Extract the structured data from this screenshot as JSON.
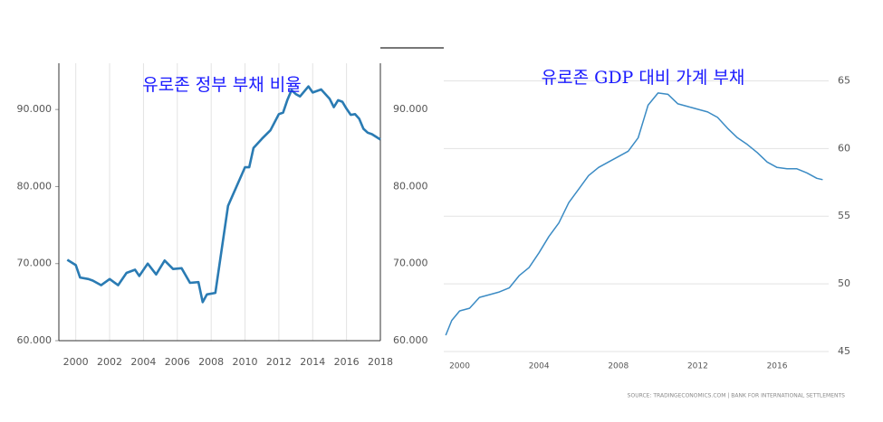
{
  "chart_data": [
    {
      "type": "line",
      "title": "유로존 정부 부채 비율",
      "x": [
        1999.5,
        2000,
        2000.25,
        2000.75,
        2001,
        2001.5,
        2002,
        2002.5,
        2003,
        2003.5,
        2003.75,
        2004.25,
        2004.75,
        2005.25,
        2005.75,
        2006.25,
        2006.75,
        2007.25,
        2007.5,
        2007.75,
        2008.25,
        2008.5,
        2009,
        2009.5,
        2010,
        2010.25,
        2010.5,
        2011,
        2011.5,
        2012,
        2012.25,
        2012.5,
        2012.75,
        2013,
        2013.25,
        2013.75,
        2014,
        2014.5,
        2015,
        2015.25,
        2015.5,
        2015.75,
        2016,
        2016.25,
        2016.5,
        2016.75,
        2017,
        2017.25,
        2017.5,
        2018
      ],
      "values": [
        70.5,
        69.8,
        68.2,
        68.0,
        67.8,
        67.2,
        68.0,
        67.2,
        68.8,
        69.2,
        68.4,
        70.0,
        68.6,
        70.4,
        69.3,
        69.4,
        67.5,
        67.6,
        65.0,
        66.0,
        66.2,
        70.0,
        77.5,
        80.0,
        82.5,
        82.5,
        85.0,
        86.2,
        87.3,
        89.4,
        89.6,
        91.2,
        92.5,
        92.0,
        91.7,
        93.0,
        92.2,
        92.6,
        91.4,
        90.3,
        91.2,
        91.0,
        90.1,
        89.3,
        89.4,
        88.8,
        87.5,
        87.0,
        86.8,
        86.1
      ],
      "color": "#2a7bb3",
      "xlim": [
        1999,
        2018
      ],
      "xticks": [
        2000,
        2002,
        2004,
        2006,
        2008,
        2010,
        2012,
        2014,
        2016,
        2018
      ],
      "ylim": [
        60,
        96
      ],
      "yticks": [
        {
          "value": 60,
          "label": "60.000"
        },
        {
          "value": 70,
          "label": "70.000"
        },
        {
          "value": 80,
          "label": "80.000"
        },
        {
          "value": 90,
          "label": "90.000"
        }
      ],
      "grid": "x"
    },
    {
      "type": "line",
      "title": "유로존 GDP 대비 가계 부채",
      "x": [
        1999.3,
        1999.6,
        2000,
        2000.5,
        2001,
        2001.5,
        2002,
        2002.5,
        2003,
        2003.5,
        2004,
        2004.5,
        2005,
        2005.5,
        2006,
        2006.5,
        2007,
        2007.5,
        2008,
        2008.5,
        2009,
        2009.5,
        2010,
        2010.5,
        2011,
        2011.5,
        2012,
        2012.5,
        2013,
        2013.5,
        2014,
        2014.5,
        2015,
        2015.5,
        2016,
        2016.5,
        2017,
        2017.5,
        2018,
        2018.3
      ],
      "values": [
        46.2,
        47.3,
        48.0,
        48.2,
        49.0,
        49.2,
        49.4,
        49.7,
        50.6,
        51.2,
        52.3,
        53.5,
        54.5,
        56.0,
        57.0,
        58.0,
        58.6,
        59.0,
        59.4,
        59.8,
        60.8,
        63.2,
        64.1,
        64.0,
        63.3,
        63.1,
        62.9,
        62.7,
        62.3,
        61.5,
        60.8,
        60.3,
        59.7,
        59.0,
        58.6,
        58.5,
        58.5,
        58.2,
        57.8,
        57.7
      ],
      "color": "#3b8bc4",
      "xlim": [
        1999.2,
        2018.6
      ],
      "xticks": [
        2000,
        2004,
        2008,
        2012,
        2016
      ],
      "ylim": [
        45,
        66.3
      ],
      "yticks": [
        45,
        50,
        55,
        60,
        65
      ],
      "grid": "y",
      "source": "SOURCE: TRADINGECONOMICS.COM | BANK FOR INTERNATIONAL SETTLEMENTS"
    }
  ]
}
